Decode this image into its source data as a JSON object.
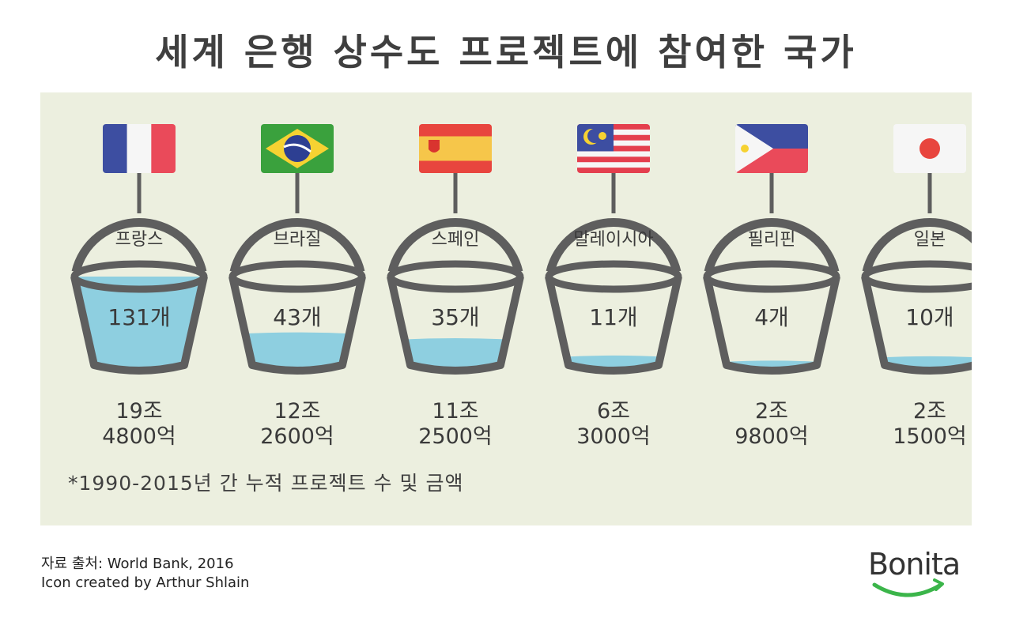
{
  "title": "세계 은행 상수도 프로젝트에 참여한 국가",
  "chart_data": {
    "type": "bar",
    "title": "세계 은행 상수도 프로젝트에 참여한 국가",
    "categories": [
      "프랑스",
      "브라질",
      "스페인",
      "말레이시아",
      "필리핀",
      "일본"
    ],
    "series": [
      {
        "values": [
          131,
          43,
          35,
          11,
          4,
          10
        ]
      }
    ],
    "value_labels": [
      "131개",
      "43개",
      "35개",
      "11개",
      "4개",
      "10개"
    ],
    "amount_labels": [
      [
        "19조",
        "4800억"
      ],
      [
        "12조",
        "2600억"
      ],
      [
        "11조",
        "2500억"
      ],
      [
        "6조",
        "3000억"
      ],
      [
        "2조",
        "9800억"
      ],
      [
        "2조",
        "1500억"
      ]
    ],
    "flags": [
      "france-flag",
      "brazil-flag",
      "spain-flag",
      "malaysia-flag",
      "philippines-flag",
      "japan-flag"
    ],
    "ylim": [
      0,
      131
    ]
  },
  "footnote": "*1990-2015년 간 누적 프로젝트 수 및 금액",
  "source": {
    "line1": "자료 출처: World Bank, 2016",
    "line2": "Icon created by Arthur Shlain"
  },
  "logo": {
    "text": "Bonita"
  },
  "colors": {
    "panel": "#ecefdf",
    "bucket": "#5e5e5e",
    "water": "#8ecfe0",
    "logo_smile": "#3bb54a"
  }
}
